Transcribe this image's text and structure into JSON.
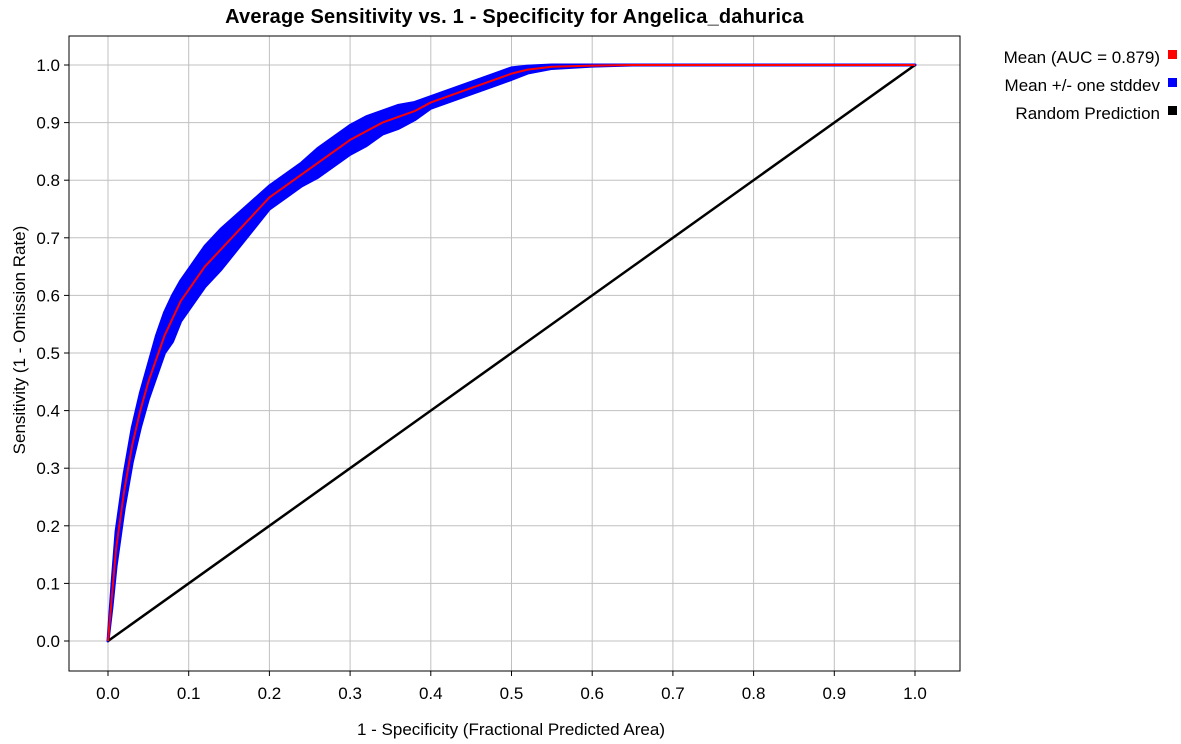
{
  "chart_data": {
    "type": "line",
    "title": "Average Sensitivity vs. 1 - Specificity for Angelica_dahurica",
    "xlabel": "1 - Specificity (Fractional Predicted Area)",
    "ylabel": "Sensitivity (1 - Omission Rate)",
    "xlim": [
      0.0,
      1.0
    ],
    "ylim": [
      0.0,
      1.0
    ],
    "x_ticks": [
      "0.0",
      "0.1",
      "0.2",
      "0.3",
      "0.4",
      "0.5",
      "0.6",
      "0.7",
      "0.8",
      "0.9",
      "1.0"
    ],
    "y_ticks": [
      "0.0",
      "0.1",
      "0.2",
      "0.3",
      "0.4",
      "0.5",
      "0.6",
      "0.7",
      "0.8",
      "0.9",
      "1.0"
    ],
    "grid": true,
    "legend_position": "right",
    "series": [
      {
        "name": "Mean (AUC = 0.879)",
        "color": "#ff0000",
        "x": [
          0.0,
          0.005,
          0.01,
          0.02,
          0.03,
          0.04,
          0.05,
          0.06,
          0.07,
          0.08,
          0.09,
          0.1,
          0.12,
          0.14,
          0.16,
          0.18,
          0.2,
          0.22,
          0.24,
          0.26,
          0.28,
          0.3,
          0.32,
          0.34,
          0.36,
          0.38,
          0.4,
          0.42,
          0.44,
          0.46,
          0.48,
          0.5,
          0.52,
          0.55,
          0.6,
          0.65,
          0.7,
          0.8,
          0.9,
          1.0
        ],
        "y": [
          0.0,
          0.08,
          0.16,
          0.26,
          0.34,
          0.4,
          0.45,
          0.49,
          0.53,
          0.56,
          0.59,
          0.61,
          0.65,
          0.68,
          0.71,
          0.74,
          0.77,
          0.79,
          0.81,
          0.83,
          0.85,
          0.87,
          0.885,
          0.9,
          0.91,
          0.92,
          0.935,
          0.945,
          0.955,
          0.965,
          0.975,
          0.985,
          0.992,
          0.997,
          0.999,
          1.0,
          1.0,
          1.0,
          1.0,
          1.0
        ]
      },
      {
        "name": "Mean +/- one stddev",
        "color": "#0000ff",
        "x": [
          0.0,
          0.005,
          0.01,
          0.02,
          0.03,
          0.04,
          0.05,
          0.06,
          0.07,
          0.08,
          0.09,
          0.1,
          0.12,
          0.14,
          0.16,
          0.18,
          0.2,
          0.22,
          0.24,
          0.26,
          0.28,
          0.3,
          0.32,
          0.34,
          0.36,
          0.38,
          0.4,
          0.42,
          0.44,
          0.46,
          0.48,
          0.5,
          0.52,
          0.55,
          0.6,
          0.65,
          0.7,
          0.8,
          0.9,
          1.0
        ],
        "upper": [
          0.0,
          0.1,
          0.19,
          0.29,
          0.37,
          0.43,
          0.48,
          0.53,
          0.57,
          0.6,
          0.625,
          0.645,
          0.685,
          0.715,
          0.74,
          0.765,
          0.79,
          0.81,
          0.83,
          0.855,
          0.875,
          0.895,
          0.91,
          0.92,
          0.93,
          0.935,
          0.945,
          0.955,
          0.965,
          0.975,
          0.985,
          0.995,
          0.998,
          1.0,
          1.0,
          1.0,
          1.0,
          1.0,
          1.0,
          1.0
        ],
        "lower": [
          0.0,
          0.06,
          0.13,
          0.23,
          0.31,
          0.37,
          0.42,
          0.46,
          0.5,
          0.52,
          0.555,
          0.575,
          0.615,
          0.645,
          0.68,
          0.715,
          0.75,
          0.77,
          0.79,
          0.805,
          0.825,
          0.845,
          0.86,
          0.88,
          0.89,
          0.905,
          0.925,
          0.935,
          0.945,
          0.955,
          0.965,
          0.975,
          0.986,
          0.994,
          0.998,
          1.0,
          1.0,
          1.0,
          1.0,
          1.0
        ]
      },
      {
        "name": "Random Prediction",
        "color": "#000000",
        "x": [
          0.0,
          1.0
        ],
        "y": [
          0.0,
          1.0
        ]
      }
    ]
  }
}
